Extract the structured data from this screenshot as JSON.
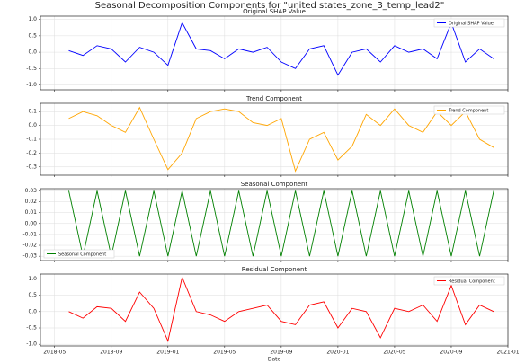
{
  "title": "Seasonal Decomposition Components for \"united states_zone_3_temp_lead2\"",
  "chart_data": [
    {
      "type": "line",
      "title": "Original SHAP Value",
      "legend": "upper right",
      "grid": true,
      "x": [
        "2018-06",
        "2018-07",
        "2018-08",
        "2018-09",
        "2018-10",
        "2018-11",
        "2018-12",
        "2019-01",
        "2019-02",
        "2019-03",
        "2019-04",
        "2019-05",
        "2019-06",
        "2019-07",
        "2019-08",
        "2019-09",
        "2019-10",
        "2019-11",
        "2019-12",
        "2020-01",
        "2020-02",
        "2020-03",
        "2020-04",
        "2020-05",
        "2020-06",
        "2020-07",
        "2020-08",
        "2020-09",
        "2020-10",
        "2020-11",
        "2020-12"
      ],
      "xlim": [
        "2018-04",
        "2021-01"
      ],
      "xticks": [
        "2018-05",
        "2018-09",
        "2019-01",
        "2019-05",
        "2019-09",
        "2020-01",
        "2020-05",
        "2020-09",
        "2021-01"
      ],
      "ylim": [
        -1.15,
        1.1
      ],
      "yticks": [
        {
          "value": -1,
          "label": "-1.0"
        },
        -0.5,
        {
          "value": 0,
          "label": "0.0"
        },
        0.5,
        {
          "value": 1,
          "label": "1.0"
        }
      ],
      "series": [
        {
          "name": "Original SHAP Value",
          "color": "#0000ff",
          "values": [
            0.05,
            -0.1,
            0.2,
            0.1,
            -0.3,
            0.15,
            0.0,
            -0.4,
            0.9,
            0.1,
            0.05,
            -0.2,
            0.1,
            0.0,
            0.15,
            -0.3,
            -0.5,
            0.1,
            0.2,
            -0.7,
            0.0,
            0.1,
            -0.3,
            0.2,
            0.0,
            0.1,
            -0.2,
            0.9,
            -0.3,
            0.1,
            -0.2
          ]
        }
      ]
    },
    {
      "type": "line",
      "title": "Trend Component",
      "legend": "upper right",
      "grid": true,
      "x": [
        "2018-06",
        "2018-07",
        "2018-08",
        "2018-09",
        "2018-10",
        "2018-11",
        "2018-12",
        "2019-01",
        "2019-02",
        "2019-03",
        "2019-04",
        "2019-05",
        "2019-06",
        "2019-07",
        "2019-08",
        "2019-09",
        "2019-10",
        "2019-11",
        "2019-12",
        "2020-01",
        "2020-02",
        "2020-03",
        "2020-04",
        "2020-05",
        "2020-06",
        "2020-07",
        "2020-08",
        "2020-09",
        "2020-10",
        "2020-11",
        "2020-12"
      ],
      "xlim": [
        "2018-04",
        "2021-01"
      ],
      "xticks": [
        "2018-05",
        "2018-09",
        "2019-01",
        "2019-05",
        "2019-09",
        "2020-01",
        "2020-05",
        "2020-09",
        "2021-01"
      ],
      "ylim": [
        -0.36,
        0.16
      ],
      "yticks": [
        -0.3,
        -0.2,
        -0.1,
        {
          "value": 0,
          "label": "0.0"
        },
        0.1
      ],
      "series": [
        {
          "name": "Trend Component",
          "color": "#ffa500",
          "values": [
            0.05,
            0.1,
            0.07,
            0.0,
            -0.05,
            0.13,
            -0.1,
            -0.32,
            -0.2,
            0.05,
            0.1,
            0.12,
            0.1,
            0.02,
            0.0,
            0.05,
            -0.33,
            -0.1,
            -0.05,
            -0.25,
            -0.15,
            0.08,
            0.0,
            0.12,
            0.0,
            -0.05,
            0.1,
            0.0,
            0.1,
            -0.1,
            -0.16
          ]
        }
      ]
    },
    {
      "type": "line",
      "title": "Seasonal Component",
      "legend": "lower left",
      "grid": true,
      "x": [
        "2018-06",
        "2018-07",
        "2018-08",
        "2018-09",
        "2018-10",
        "2018-11",
        "2018-12",
        "2019-01",
        "2019-02",
        "2019-03",
        "2019-04",
        "2019-05",
        "2019-06",
        "2019-07",
        "2019-08",
        "2019-09",
        "2019-10",
        "2019-11",
        "2019-12",
        "2020-01",
        "2020-02",
        "2020-03",
        "2020-04",
        "2020-05",
        "2020-06",
        "2020-07",
        "2020-08",
        "2020-09",
        "2020-10",
        "2020-11",
        "2020-12"
      ],
      "xlim": [
        "2018-04",
        "2021-01"
      ],
      "xticks": [
        "2018-05",
        "2018-09",
        "2019-01",
        "2019-05",
        "2019-09",
        "2020-01",
        "2020-05",
        "2020-09",
        "2021-01"
      ],
      "ylim": [
        -0.034,
        0.032
      ],
      "yticks": [
        {
          "value": -0.03,
          "label": "-0.03"
        },
        {
          "value": -0.02,
          "label": "-0.02"
        },
        {
          "value": -0.01,
          "label": "-0.01"
        },
        {
          "value": 0,
          "label": "0.00"
        },
        {
          "value": 0.01,
          "label": "0.01"
        },
        {
          "value": 0.02,
          "label": "0.02"
        },
        {
          "value": 0.03,
          "label": "0.03"
        }
      ],
      "series": [
        {
          "name": "Seasonal Component",
          "color": "#008000",
          "values": [
            0.03,
            -0.03,
            0.03,
            -0.03,
            0.03,
            -0.03,
            0.03,
            -0.03,
            0.03,
            -0.03,
            0.03,
            -0.03,
            0.03,
            -0.03,
            0.03,
            -0.03,
            0.03,
            -0.03,
            0.03,
            -0.03,
            0.03,
            -0.03,
            0.03,
            -0.03,
            0.03,
            -0.03,
            0.03,
            -0.03,
            0.03,
            -0.03,
            0.03
          ]
        }
      ]
    },
    {
      "type": "line",
      "title": "Residual Component",
      "legend": "upper right",
      "grid": true,
      "xlabel": "Date",
      "x": [
        "2018-06",
        "2018-07",
        "2018-08",
        "2018-09",
        "2018-10",
        "2018-11",
        "2018-12",
        "2019-01",
        "2019-02",
        "2019-03",
        "2019-04",
        "2019-05",
        "2019-06",
        "2019-07",
        "2019-08",
        "2019-09",
        "2019-10",
        "2019-11",
        "2019-12",
        "2020-01",
        "2020-02",
        "2020-03",
        "2020-04",
        "2020-05",
        "2020-06",
        "2020-07",
        "2020-08",
        "2020-09",
        "2020-10",
        "2020-11",
        "2020-12"
      ],
      "xlim": [
        "2018-04",
        "2021-01"
      ],
      "xticks": [
        "2018-05",
        "2018-09",
        "2019-01",
        "2019-05",
        "2019-09",
        "2020-01",
        "2020-05",
        "2020-09",
        "2021-01"
      ],
      "ylim": [
        -1.05,
        1.15
      ],
      "yticks": [
        {
          "value": -1,
          "label": "-1.0"
        },
        -0.5,
        {
          "value": 0,
          "label": "0.0"
        },
        0.5,
        {
          "value": 1,
          "label": "1.0"
        }
      ],
      "series": [
        {
          "name": "Residual Component",
          "color": "#ff0000",
          "values": [
            0.0,
            -0.2,
            0.15,
            0.1,
            -0.3,
            0.6,
            0.1,
            -0.9,
            1.05,
            0.0,
            -0.1,
            -0.3,
            0.0,
            0.1,
            0.2,
            -0.3,
            -0.4,
            0.2,
            0.3,
            -0.5,
            0.1,
            0.0,
            -0.8,
            0.1,
            0.0,
            0.2,
            -0.3,
            0.8,
            -0.4,
            0.2,
            0.0
          ]
        }
      ]
    }
  ]
}
